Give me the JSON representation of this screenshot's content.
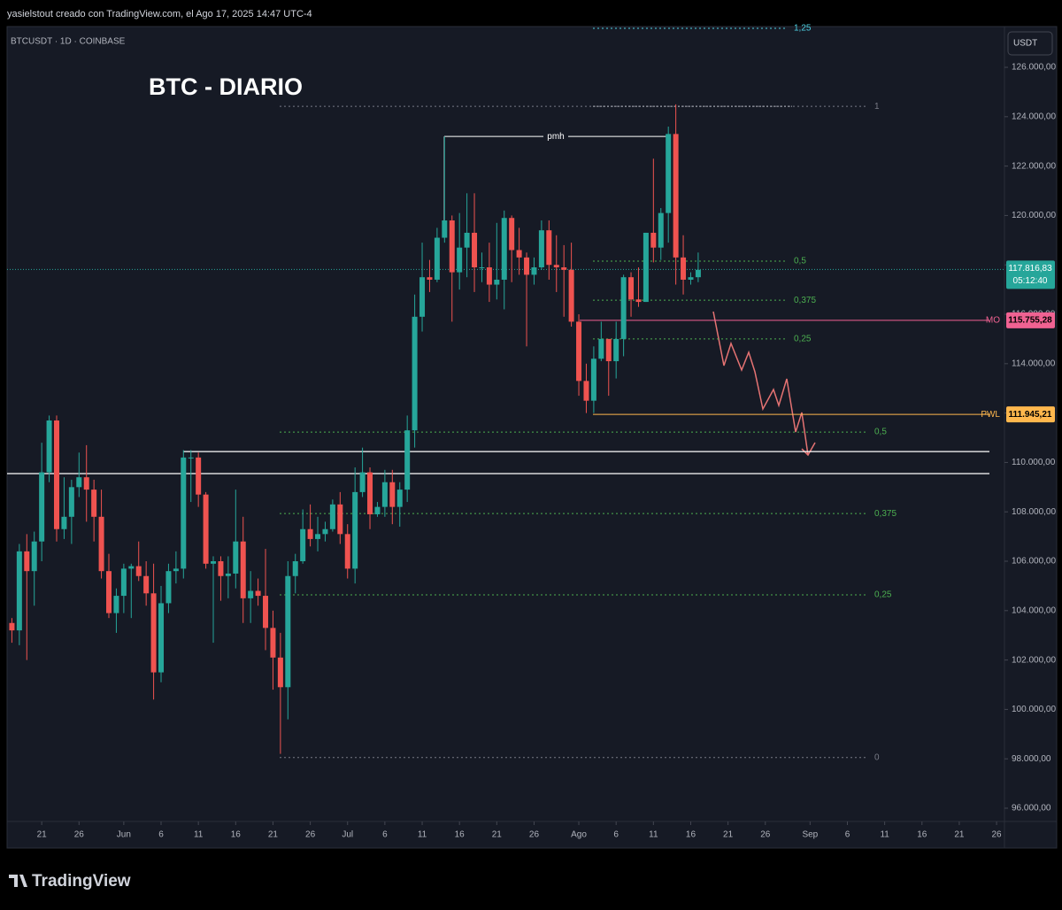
{
  "header": "yasielstout creado con TradingView.com, el Ago 17, 2025 14:47 UTC-4",
  "footer": {
    "logo": "TradingView"
  },
  "chart_data": {
    "type": "candlestick",
    "symbol": "BTCUSDT · 1D · COINBASE",
    "title": "BTC - DIARIO",
    "currency": "USDT",
    "up_color": "#26a69a",
    "down_color": "#ef5350",
    "x": [
      "2025-05-17",
      "2025-05-18",
      "2025-05-19",
      "2025-05-20",
      "2025-05-21",
      "2025-05-22",
      "2025-05-23",
      "2025-05-24",
      "2025-05-25",
      "2025-05-26",
      "2025-05-27",
      "2025-05-28",
      "2025-05-29",
      "2025-05-30",
      "2025-05-31",
      "2025-06-01",
      "2025-06-02",
      "2025-06-03",
      "2025-06-04",
      "2025-06-05",
      "2025-06-06",
      "2025-06-07",
      "2025-06-08",
      "2025-06-09",
      "2025-06-10",
      "2025-06-11",
      "2025-06-12",
      "2025-06-13",
      "2025-06-14",
      "2025-06-15",
      "2025-06-16",
      "2025-06-17",
      "2025-06-18",
      "2025-06-19",
      "2025-06-20",
      "2025-06-21",
      "2025-06-22",
      "2025-06-23",
      "2025-06-24",
      "2025-06-25",
      "2025-06-26",
      "2025-06-27",
      "2025-06-28",
      "2025-06-29",
      "2025-06-30",
      "2025-07-01",
      "2025-07-02",
      "2025-07-03",
      "2025-07-04",
      "2025-07-05",
      "2025-07-06",
      "2025-07-07",
      "2025-07-08",
      "2025-07-09",
      "2025-07-10",
      "2025-07-11",
      "2025-07-12",
      "2025-07-13",
      "2025-07-14",
      "2025-07-15",
      "2025-07-16",
      "2025-07-17",
      "2025-07-18",
      "2025-07-19",
      "2025-07-20",
      "2025-07-21",
      "2025-07-22",
      "2025-07-23",
      "2025-07-24",
      "2025-07-25",
      "2025-07-26",
      "2025-07-27",
      "2025-07-28",
      "2025-07-29",
      "2025-07-30",
      "2025-07-31",
      "2025-08-01",
      "2025-08-02",
      "2025-08-03",
      "2025-08-04",
      "2025-08-05",
      "2025-08-06",
      "2025-08-07",
      "2025-08-08",
      "2025-08-09",
      "2025-08-10",
      "2025-08-11",
      "2025-08-12",
      "2025-08-13",
      "2025-08-14",
      "2025-08-15",
      "2025-08-16",
      "2025-08-17"
    ],
    "open": [
      103500,
      103200,
      106400,
      105600,
      106800,
      109600,
      111700,
      107300,
      107800,
      109000,
      109400,
      108900,
      107800,
      105600,
      103900,
      104600,
      105700,
      105800,
      105400,
      104700,
      101500,
      104300,
      105600,
      105700,
      110200,
      110200,
      108700,
      105900,
      106000,
      105400,
      105500,
      106800,
      104500,
      104800,
      104600,
      103300,
      102100,
      100900,
      105400,
      106000,
      107300,
      106900,
      107100,
      107300,
      108300,
      107100,
      105700,
      108800,
      109600,
      107900,
      108200,
      109200,
      108200,
      108900,
      111300,
      115900,
      117500,
      117400,
      119100,
      119800,
      117700,
      118700,
      119300,
      117900,
      117900,
      117200,
      117400,
      119900,
      118600,
      118300,
      117600,
      117900,
      119400,
      118000,
      117900,
      117800,
      115700,
      113300,
      112500,
      114200,
      115000,
      114100,
      115000,
      117500,
      116600,
      116500,
      119300,
      118700,
      120100,
      123300,
      118300,
      117400,
      117500
    ],
    "high": [
      103700,
      106700,
      107100,
      107200,
      110800,
      111900,
      111900,
      109400,
      109300,
      110400,
      110700,
      109300,
      108900,
      106300,
      104900,
      105900,
      105900,
      106800,
      106000,
      105900,
      105000,
      105900,
      106400,
      110500,
      110500,
      110400,
      108800,
      106200,
      106200,
      106200,
      108900,
      107800,
      105600,
      105300,
      106500,
      104000,
      103100,
      106000,
      106300,
      108100,
      108300,
      107800,
      107600,
      108500,
      108800,
      107500,
      109800,
      110600,
      109800,
      108400,
      109700,
      109700,
      109200,
      111900,
      116800,
      118900,
      118200,
      119500,
      123200,
      120000,
      120100,
      120900,
      120900,
      118500,
      118900,
      119700,
      120200,
      120000,
      119500,
      118500,
      118300,
      119800,
      119800,
      119200,
      118800,
      118900,
      116000,
      114000,
      114700,
      115700,
      115000,
      115700,
      117600,
      117700,
      117900,
      119300,
      122300,
      120300,
      123600,
      124500,
      119200,
      117700,
      118500
    ],
    "low": [
      102700,
      102600,
      102000,
      104200,
      106000,
      109200,
      106800,
      106900,
      106700,
      108600,
      107600,
      106800,
      105300,
      103700,
      103100,
      103900,
      103700,
      105200,
      104200,
      100400,
      101100,
      103900,
      105100,
      105300,
      108400,
      108200,
      105700,
      102700,
      104400,
      104500,
      104900,
      103500,
      103500,
      104200,
      102400,
      100800,
      98200,
      99600,
      104700,
      105900,
      106600,
      106400,
      106800,
      107200,
      106700,
      105300,
      105100,
      108600,
      107300,
      107800,
      107800,
      107500,
      107400,
      108400,
      110600,
      115300,
      116900,
      117300,
      118900,
      115700,
      117000,
      117500,
      116900,
      117300,
      116500,
      116600,
      116200,
      117300,
      117600,
      114700,
      117200,
      117800,
      117400,
      116900,
      115900,
      115500,
      112700,
      112000,
      112000,
      114100,
      112700,
      113400,
      114300,
      115900,
      116300,
      116500,
      118100,
      118200,
      118900,
      117200,
      116800,
      117200,
      117300
    ],
    "close": [
      103200,
      106400,
      105600,
      106800,
      109600,
      111700,
      107300,
      107800,
      109000,
      109400,
      108900,
      107800,
      105600,
      103900,
      104600,
      105700,
      105800,
      105400,
      104700,
      101500,
      104300,
      105600,
      105700,
      110200,
      110200,
      108700,
      105900,
      106000,
      105400,
      105500,
      106800,
      104500,
      104800,
      104600,
      103300,
      102100,
      100900,
      105400,
      106000,
      107300,
      106900,
      107100,
      107300,
      108300,
      107100,
      105700,
      108800,
      109600,
      107900,
      108200,
      109200,
      108200,
      108900,
      111300,
      115900,
      117500,
      117400,
      119100,
      119800,
      117700,
      118700,
      119300,
      117900,
      117900,
      117200,
      117400,
      119900,
      118600,
      118300,
      117600,
      117900,
      119400,
      118000,
      117900,
      117800,
      115700,
      113300,
      112500,
      114200,
      115000,
      114100,
      115000,
      117500,
      116600,
      116500,
      119300,
      118700,
      120100,
      123300,
      118300,
      117400,
      117500,
      117800
    ],
    "xlim": [
      "2025-05-16",
      "2025-09-27"
    ],
    "xticks": [
      {
        "value": "2025-05-21",
        "label": "21"
      },
      {
        "value": "2025-05-26",
        "label": "26"
      },
      {
        "value": "2025-06-01",
        "label": "Jun"
      },
      {
        "value": "2025-06-06",
        "label": "6"
      },
      {
        "value": "2025-06-11",
        "label": "11"
      },
      {
        "value": "2025-06-16",
        "label": "16"
      },
      {
        "value": "2025-06-21",
        "label": "21"
      },
      {
        "value": "2025-06-26",
        "label": "26"
      },
      {
        "value": "2025-07-01",
        "label": "Jul"
      },
      {
        "value": "2025-07-06",
        "label": "6"
      },
      {
        "value": "2025-07-11",
        "label": "11"
      },
      {
        "value": "2025-07-16",
        "label": "16"
      },
      {
        "value": "2025-07-21",
        "label": "21"
      },
      {
        "value": "2025-07-26",
        "label": "26"
      },
      {
        "value": "2025-08-01",
        "label": "Ago"
      },
      {
        "value": "2025-08-06",
        "label": "6"
      },
      {
        "value": "2025-08-11",
        "label": "11"
      },
      {
        "value": "2025-08-16",
        "label": "16"
      },
      {
        "value": "2025-08-21",
        "label": "21"
      },
      {
        "value": "2025-08-26",
        "label": "26"
      },
      {
        "value": "2025-09-01",
        "label": "Sep"
      },
      {
        "value": "2025-09-06",
        "label": "6"
      },
      {
        "value": "2025-09-11",
        "label": "11"
      },
      {
        "value": "2025-09-16",
        "label": "16"
      },
      {
        "value": "2025-09-21",
        "label": "21"
      },
      {
        "value": "2025-09-26",
        "label": "26"
      }
    ],
    "ylim": [
      95570,
      127650
    ],
    "yticks": [
      {
        "value": 96000,
        "label": "96.000,00"
      },
      {
        "value": 98000,
        "label": "98.000,00"
      },
      {
        "value": 100000,
        "label": "100.000,00"
      },
      {
        "value": 102000,
        "label": "102.000,00"
      },
      {
        "value": 104000,
        "label": "104.000,00"
      },
      {
        "value": 106000,
        "label": "106.000,00"
      },
      {
        "value": 108000,
        "label": "108.000,00"
      },
      {
        "value": 110000,
        "label": "110.000,00"
      },
      {
        "value": 112000,
        "label": "112.000,00"
      },
      {
        "value": 114000,
        "label": "114.000,00"
      },
      {
        "value": 116000,
        "label": "116.000,00"
      },
      {
        "value": 118000,
        "label": "118.000,00"
      },
      {
        "value": 120000,
        "label": "120.000,00"
      },
      {
        "value": 122000,
        "label": "122.000,00"
      },
      {
        "value": 124000,
        "label": "124.000,00"
      },
      {
        "value": 126000,
        "label": "126.000,00"
      }
    ],
    "fib_main": [
      {
        "label": "1",
        "price": 124420,
        "color": "#787b86"
      },
      {
        "label": "0,5",
        "price": 111230,
        "color": "#4caf50"
      },
      {
        "label": "0,375",
        "price": 107930,
        "color": "#4caf50"
      },
      {
        "label": "0,25",
        "price": 104640,
        "color": "#4caf50"
      },
      {
        "label": "0",
        "price": 98050,
        "color": "#787b86"
      }
    ],
    "fib_small": [
      {
        "label": "1,25",
        "price": 127580,
        "color": "#4dd0e1"
      },
      {
        "label": "0,5",
        "price": 118150,
        "color": "#4caf50"
      },
      {
        "label": "0,375",
        "price": 116570,
        "color": "#4caf50"
      },
      {
        "label": "0,25",
        "price": 115000,
        "color": "#4caf50"
      }
    ],
    "levels": [
      110440,
      109550
    ],
    "pmh": {
      "label": "pmh",
      "price": 123200
    },
    "current_price": {
      "price": 117816.83,
      "label": "117.816,83",
      "countdown": "05:12:40",
      "color": "#26a69a"
    },
    "tags": [
      {
        "name": "MO",
        "price": 115755.28,
        "label": "115.755,28",
        "color": "#f06292"
      },
      {
        "name": "PWL",
        "price": 111945.21,
        "label": "111.945,21",
        "color": "#ffb74d"
      }
    ]
  }
}
